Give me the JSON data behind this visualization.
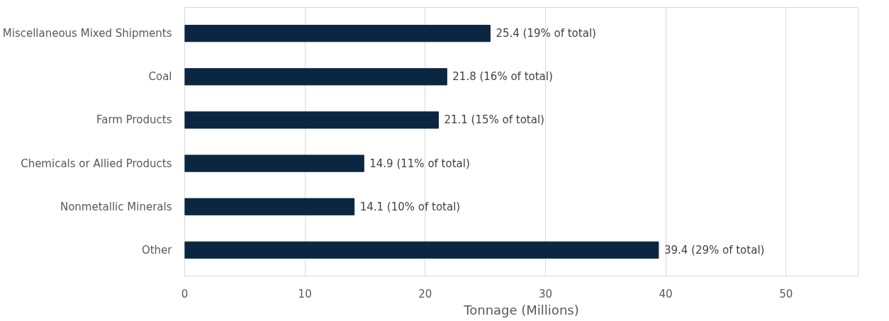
{
  "chart_data": {
    "type": "bar",
    "orientation": "horizontal",
    "xlabel": "Tonnage (Millions)",
    "categories": [
      "Miscellaneous Mixed Shipments",
      "Coal",
      "Farm Products",
      "Chemicals or Allied Products",
      "Nonmetallic Minerals",
      "Other"
    ],
    "values": [
      25.4,
      21.8,
      21.1,
      14.9,
      14.1,
      39.4
    ],
    "value_labels": [
      "25.4 (19% of total)",
      "21.8 (16% of total)",
      "21.1 (15% of total)",
      "14.9 (11% of total)",
      "14.1 (10% of total)",
      "39.4 (29% of total)"
    ],
    "color": "#0b2640",
    "xlim": [
      0,
      56
    ],
    "xticks": [
      0,
      10,
      20,
      30,
      40,
      50
    ],
    "grid": "x"
  }
}
